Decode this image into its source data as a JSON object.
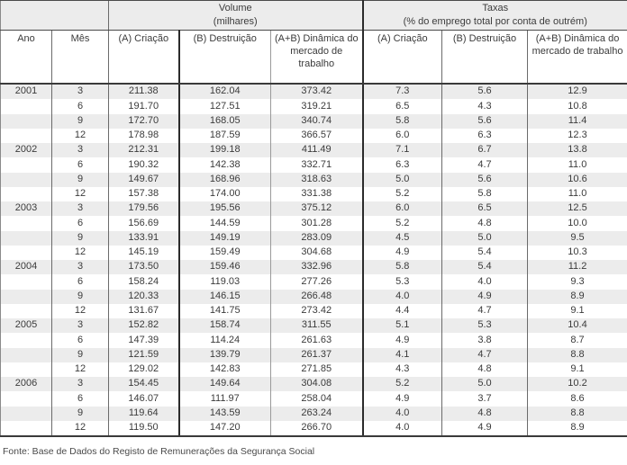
{
  "table": {
    "sections": {
      "volume_title": "Volume",
      "volume_subtitle": "(milhares)",
      "taxas_title": "Taxas",
      "taxas_subtitle": "(% do emprego total por conta de outrém)"
    },
    "columns": {
      "ano": "Ano",
      "mes": "Mês",
      "vol_criacao": "(A) Criação",
      "vol_destruicao": "(B) Destruição",
      "vol_dinamica": "(A+B) Dinâmica do mercado de trabalho",
      "tax_criacao": "(A) Criação",
      "tax_destruicao": "(B) Destruição",
      "tax_dinamica": "(A+B) Dinâmica do mercado de trabalho"
    },
    "rows": [
      {
        "ano": "2001",
        "mes": "3",
        "va": "211.38",
        "vb": "162.04",
        "vab": "373.42",
        "ta": "7.3",
        "tb": "5.6",
        "tab": "12.9"
      },
      {
        "ano": "",
        "mes": "6",
        "va": "191.70",
        "vb": "127.51",
        "vab": "319.21",
        "ta": "6.5",
        "tb": "4.3",
        "tab": "10.8"
      },
      {
        "ano": "",
        "mes": "9",
        "va": "172.70",
        "vb": "168.05",
        "vab": "340.74",
        "ta": "5.8",
        "tb": "5.6",
        "tab": "11.4"
      },
      {
        "ano": "",
        "mes": "12",
        "va": "178.98",
        "vb": "187.59",
        "vab": "366.57",
        "ta": "6.0",
        "tb": "6.3",
        "tab": "12.3"
      },
      {
        "ano": "2002",
        "mes": "3",
        "va": "212.31",
        "vb": "199.18",
        "vab": "411.49",
        "ta": "7.1",
        "tb": "6.7",
        "tab": "13.8"
      },
      {
        "ano": "",
        "mes": "6",
        "va": "190.32",
        "vb": "142.38",
        "vab": "332.71",
        "ta": "6.3",
        "tb": "4.7",
        "tab": "11.0"
      },
      {
        "ano": "",
        "mes": "9",
        "va": "149.67",
        "vb": "168.96",
        "vab": "318.63",
        "ta": "5.0",
        "tb": "5.6",
        "tab": "10.6"
      },
      {
        "ano": "",
        "mes": "12",
        "va": "157.38",
        "vb": "174.00",
        "vab": "331.38",
        "ta": "5.2",
        "tb": "5.8",
        "tab": "11.0"
      },
      {
        "ano": "2003",
        "mes": "3",
        "va": "179.56",
        "vb": "195.56",
        "vab": "375.12",
        "ta": "6.0",
        "tb": "6.5",
        "tab": "12.5"
      },
      {
        "ano": "",
        "mes": "6",
        "va": "156.69",
        "vb": "144.59",
        "vab": "301.28",
        "ta": "5.2",
        "tb": "4.8",
        "tab": "10.0"
      },
      {
        "ano": "",
        "mes": "9",
        "va": "133.91",
        "vb": "149.19",
        "vab": "283.09",
        "ta": "4.5",
        "tb": "5.0",
        "tab": "9.5"
      },
      {
        "ano": "",
        "mes": "12",
        "va": "145.19",
        "vb": "159.49",
        "vab": "304.68",
        "ta": "4.9",
        "tb": "5.4",
        "tab": "10.3"
      },
      {
        "ano": "2004",
        "mes": "3",
        "va": "173.50",
        "vb": "159.46",
        "vab": "332.96",
        "ta": "5.8",
        "tb": "5.4",
        "tab": "11.2"
      },
      {
        "ano": "",
        "mes": "6",
        "va": "158.24",
        "vb": "119.03",
        "vab": "277.26",
        "ta": "5.3",
        "tb": "4.0",
        "tab": "9.3"
      },
      {
        "ano": "",
        "mes": "9",
        "va": "120.33",
        "vb": "146.15",
        "vab": "266.48",
        "ta": "4.0",
        "tb": "4.9",
        "tab": "8.9"
      },
      {
        "ano": "",
        "mes": "12",
        "va": "131.67",
        "vb": "141.75",
        "vab": "273.42",
        "ta": "4.4",
        "tb": "4.7",
        "tab": "9.1"
      },
      {
        "ano": "2005",
        "mes": "3",
        "va": "152.82",
        "vb": "158.74",
        "vab": "311.55",
        "ta": "5.1",
        "tb": "5.3",
        "tab": "10.4"
      },
      {
        "ano": "",
        "mes": "6",
        "va": "147.39",
        "vb": "114.24",
        "vab": "261.63",
        "ta": "4.9",
        "tb": "3.8",
        "tab": "8.7"
      },
      {
        "ano": "",
        "mes": "9",
        "va": "121.59",
        "vb": "139.79",
        "vab": "261.37",
        "ta": "4.1",
        "tb": "4.7",
        "tab": "8.8"
      },
      {
        "ano": "",
        "mes": "12",
        "va": "129.02",
        "vb": "142.83",
        "vab": "271.85",
        "ta": "4.3",
        "tb": "4.8",
        "tab": "9.1"
      },
      {
        "ano": "2006",
        "mes": "3",
        "va": "154.45",
        "vb": "149.64",
        "vab": "304.08",
        "ta": "5.2",
        "tb": "5.0",
        "tab": "10.2"
      },
      {
        "ano": "",
        "mes": "6",
        "va": "146.07",
        "vb": "111.97",
        "vab": "258.04",
        "ta": "4.9",
        "tb": "3.7",
        "tab": "8.6"
      },
      {
        "ano": "",
        "mes": "9",
        "va": "119.64",
        "vb": "143.59",
        "vab": "263.24",
        "ta": "4.0",
        "tb": "4.8",
        "tab": "8.8"
      },
      {
        "ano": "",
        "mes": "12",
        "va": "119.50",
        "vb": "147.20",
        "vab": "266.70",
        "ta": "4.0",
        "tb": "4.9",
        "tab": "8.9"
      }
    ]
  },
  "footer": {
    "source": "Fonte: Base de Dados do Registo de Remunerações da Segurança Social"
  }
}
